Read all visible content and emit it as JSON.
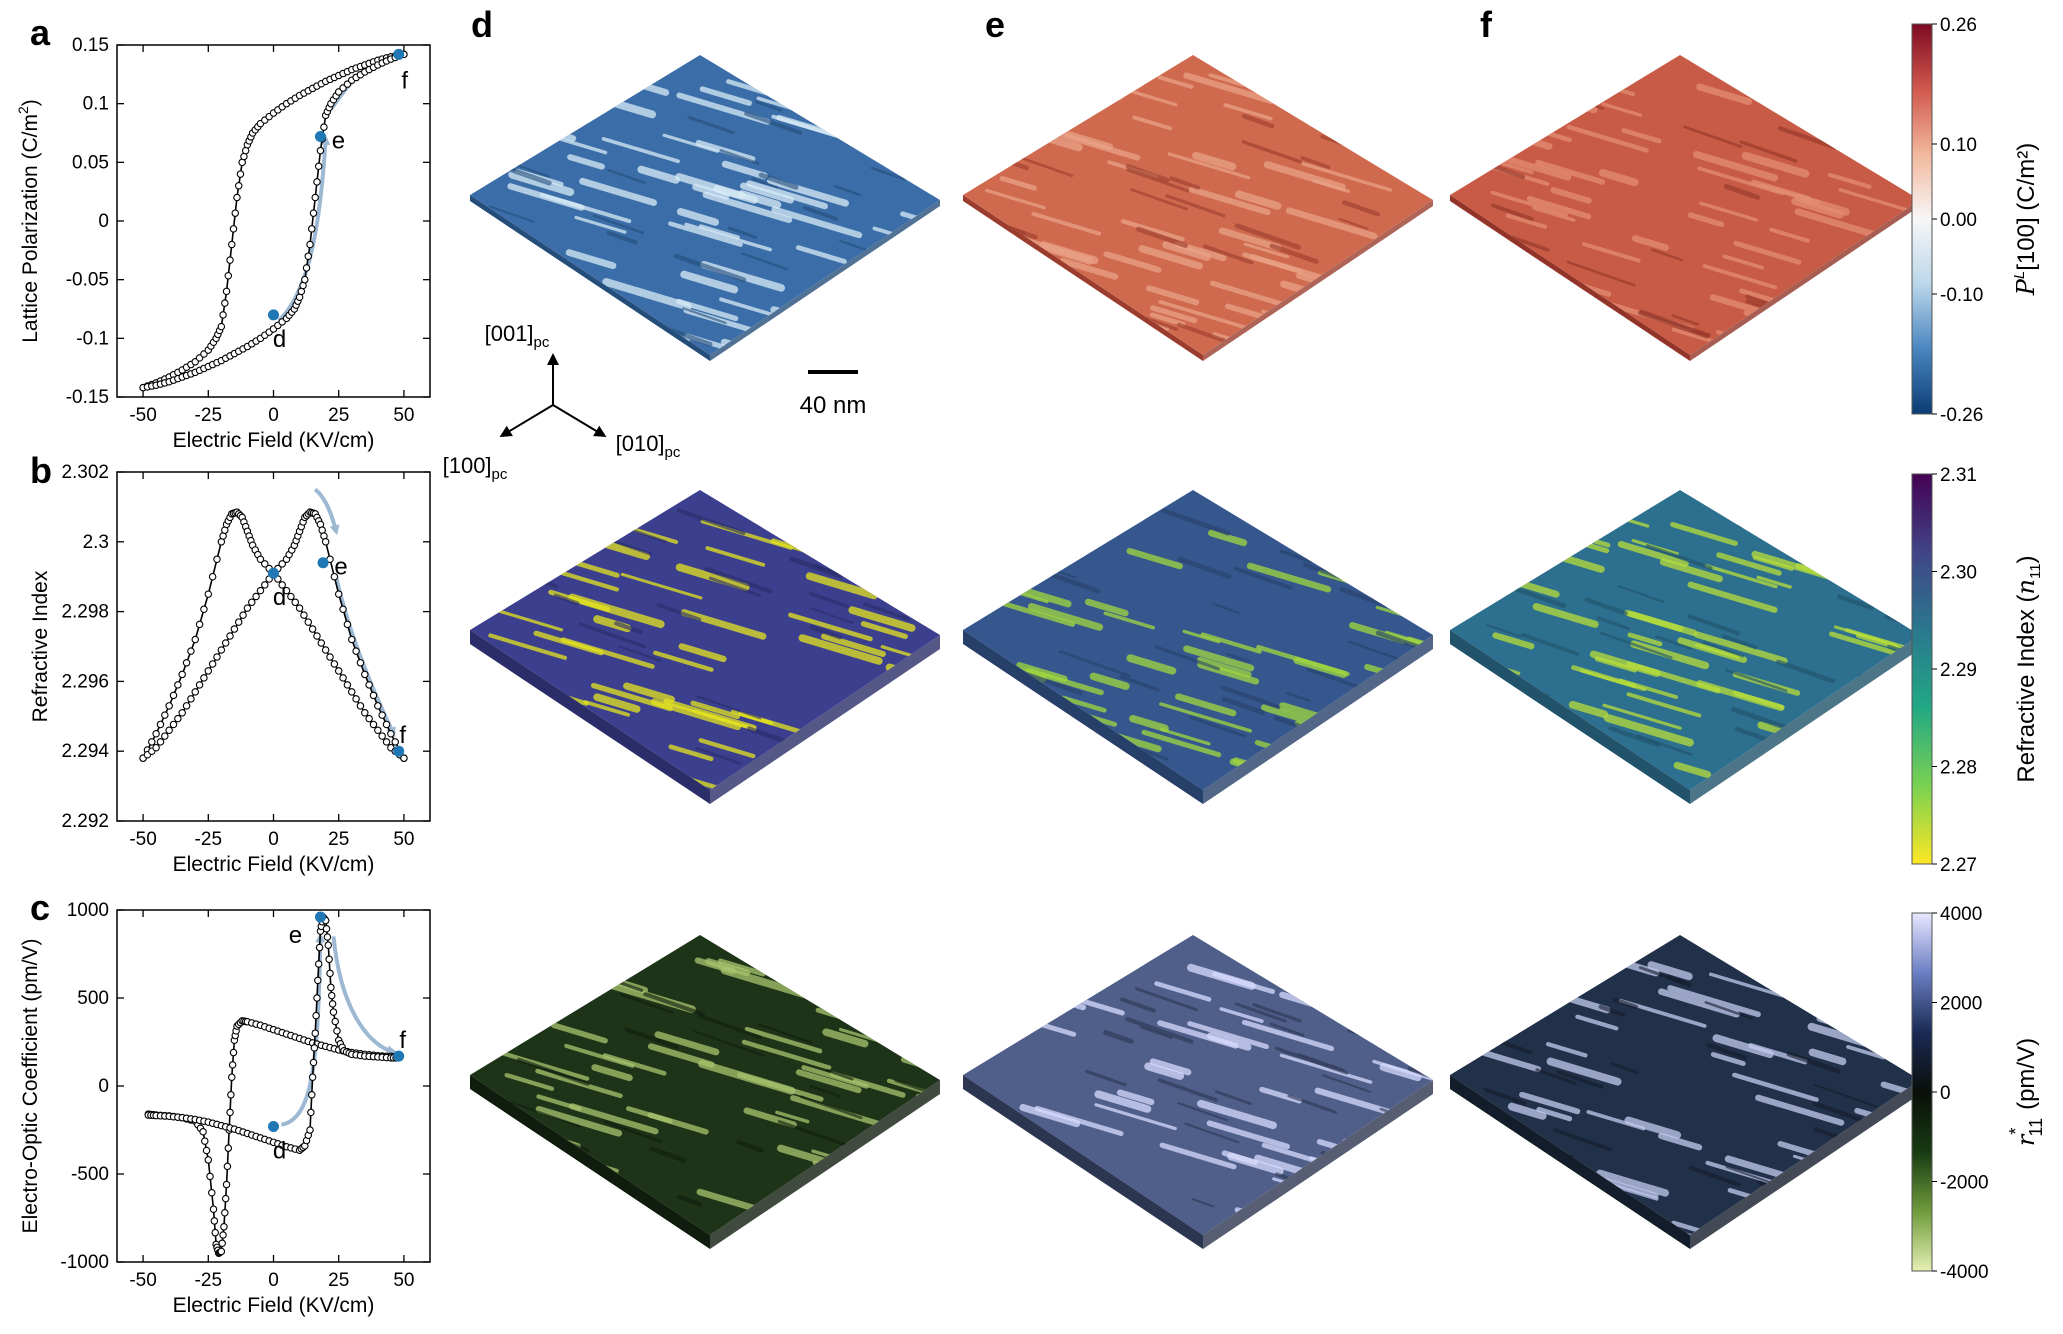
{
  "panel_letters": [
    "a",
    "b",
    "c",
    "d",
    "e",
    "f"
  ],
  "colors": {
    "curve": "#000000",
    "marker": "#1f77b4",
    "arrow": "#9db8d2"
  },
  "chart_data": [
    {
      "id": "a",
      "type": "line",
      "xlabel": "Electric Field (KV/cm)",
      "ylabel": "Lattice Polarization (C/m",
      "ylabel_sup": "2",
      "ylabel_end": ")",
      "xlim": [
        -60,
        60
      ],
      "ylim": [
        -0.15,
        0.15
      ],
      "xticks": [
        -50,
        -25,
        0,
        25,
        50
      ],
      "xtick_labels": [
        "-50",
        "-25",
        "0",
        "25",
        "50"
      ],
      "yticks": [
        -0.15,
        -0.1,
        -0.05,
        0,
        0.05,
        0.1,
        0.15
      ],
      "ytick_labels": [
        "-0.15",
        "-0.1",
        "-0.05",
        "0",
        "0.05",
        "0.1",
        "0.15"
      ],
      "series": [
        {
          "x": [
            -50,
            -45,
            -40,
            -35,
            -30,
            -25,
            -22,
            -20,
            -18,
            -16,
            -14,
            -12,
            -10,
            -8,
            -5,
            0,
            5,
            10,
            15,
            20,
            25,
            30,
            35,
            40,
            45,
            50
          ],
          "y": [
            -0.142,
            -0.138,
            -0.133,
            -0.127,
            -0.12,
            -0.11,
            -0.1,
            -0.09,
            -0.06,
            -0.02,
            0.02,
            0.05,
            0.065,
            0.075,
            0.083,
            0.092,
            0.1,
            0.107,
            0.113,
            0.119,
            0.124,
            0.129,
            0.133,
            0.137,
            0.14,
            0.142
          ]
        },
        {
          "x": [
            -50,
            -45,
            -40,
            -35,
            -30,
            -25,
            -20,
            -15,
            -10,
            -5,
            0,
            5,
            8,
            10,
            12,
            14,
            16,
            18,
            20,
            22,
            25,
            30,
            35,
            40,
            45,
            50
          ],
          "y": [
            -0.142,
            -0.14,
            -0.137,
            -0.133,
            -0.129,
            -0.124,
            -0.119,
            -0.113,
            -0.107,
            -0.1,
            -0.092,
            -0.083,
            -0.075,
            -0.065,
            -0.05,
            -0.02,
            0.02,
            0.06,
            0.09,
            0.1,
            0.11,
            0.12,
            0.127,
            0.133,
            0.138,
            0.142
          ]
        }
      ],
      "markers": [
        {
          "label": "d",
          "x": 0,
          "y": -0.08
        },
        {
          "label": "e",
          "x": 18,
          "y": 0.072
        },
        {
          "label": "f",
          "x": 48,
          "y": 0.142
        }
      ]
    },
    {
      "id": "b",
      "type": "line",
      "xlabel": "Electric Field (KV/cm)",
      "ylabel": "Refractive Index",
      "xlim": [
        -60,
        60
      ],
      "ylim": [
        2.292,
        2.302
      ],
      "xticks": [
        -50,
        -25,
        0,
        25,
        50
      ],
      "xtick_labels": [
        "-50",
        "-25",
        "0",
        "25",
        "50"
      ],
      "yticks": [
        2.292,
        2.294,
        2.296,
        2.298,
        2.3,
        2.302
      ],
      "ytick_labels": [
        "2.292",
        "2.294",
        "2.296",
        "2.298",
        "2.3",
        "2.302"
      ],
      "series": [
        {
          "x": [
            -50,
            -45,
            -40,
            -35,
            -30,
            -25,
            -20,
            -18,
            -16,
            -14,
            -12,
            -10,
            -8,
            -5,
            0,
            5,
            10,
            15,
            20,
            25,
            30,
            35,
            40,
            45,
            50
          ],
          "y": [
            2.2938,
            2.2945,
            2.2953,
            2.2962,
            2.2972,
            2.2985,
            2.3,
            2.3005,
            2.3008,
            2.30085,
            2.3007,
            2.3003,
            2.2999,
            2.2995,
            2.2991,
            2.2986,
            2.2981,
            2.2975,
            2.2969,
            2.2963,
            2.2957,
            2.2951,
            2.2946,
            2.2941,
            2.2938
          ]
        },
        {
          "x": [
            -50,
            -45,
            -40,
            -35,
            -30,
            -25,
            -20,
            -15,
            -10,
            -5,
            0,
            5,
            8,
            10,
            12,
            14,
            16,
            18,
            20,
            25,
            30,
            35,
            40,
            45,
            50
          ],
          "y": [
            2.2938,
            2.2941,
            2.2946,
            2.2951,
            2.2957,
            2.2963,
            2.2969,
            2.2975,
            2.2981,
            2.2986,
            2.2991,
            2.2995,
            2.2999,
            2.3003,
            2.3007,
            2.30085,
            2.3008,
            2.3005,
            2.3,
            2.2985,
            2.2972,
            2.2962,
            2.2953,
            2.2945,
            2.2938
          ]
        }
      ],
      "markers": [
        {
          "label": "d",
          "x": 0,
          "y": 2.2991
        },
        {
          "label": "e",
          "x": 19,
          "y": 2.2994
        },
        {
          "label": "f",
          "x": 48,
          "y": 2.294
        }
      ]
    },
    {
      "id": "c",
      "type": "line",
      "xlabel": "Electric Field (KV/cm)",
      "ylabel": "Electro-Optic Coefficient (pm/V)",
      "xlim": [
        -60,
        60
      ],
      "ylim": [
        -1000,
        1000
      ],
      "xticks": [
        -50,
        -25,
        0,
        25,
        50
      ],
      "xtick_labels": [
        "-50",
        "-25",
        "0",
        "25",
        "50"
      ],
      "yticks": [
        -1000,
        -500,
        0,
        500,
        1000
      ],
      "ytick_labels": [
        "-1000",
        "-500",
        "0",
        "500",
        "1000"
      ],
      "series": [
        {
          "x": [
            -48,
            -45,
            -40,
            -35,
            -30,
            -27,
            -25,
            -23,
            -22,
            -21,
            -20,
            -19,
            -18,
            -17,
            -16,
            -15,
            -14,
            -12,
            -10,
            -5,
            0,
            5,
            10,
            15,
            20,
            25,
            30,
            35,
            40,
            45,
            48
          ],
          "y": [
            -160,
            -165,
            -170,
            -180,
            -200,
            -260,
            -420,
            -700,
            -900,
            -950,
            -940,
            -800,
            -560,
            -250,
            50,
            260,
            340,
            370,
            365,
            345,
            320,
            295,
            270,
            245,
            225,
            205,
            190,
            180,
            172,
            168,
            165
          ]
        },
        {
          "x": [
            -48,
            -45,
            -40,
            -35,
            -30,
            -25,
            -20,
            -15,
            -10,
            -5,
            0,
            5,
            10,
            12,
            14,
            15,
            16,
            17,
            18,
            19,
            20,
            21,
            22,
            23,
            25,
            27,
            30,
            35,
            40,
            45,
            48
          ],
          "y": [
            -165,
            -168,
            -172,
            -180,
            -190,
            -205,
            -225,
            -245,
            -270,
            -295,
            -320,
            -345,
            -365,
            -340,
            -250,
            50,
            300,
            600,
            880,
            960,
            940,
            800,
            560,
            420,
            260,
            200,
            180,
            170,
            165,
            160,
            160
          ]
        }
      ],
      "markers": [
        {
          "label": "d",
          "x": 0,
          "y": -230
        },
        {
          "label": "e",
          "x": 18,
          "y": 960
        },
        {
          "label": "f",
          "x": 48,
          "y": 170
        }
      ]
    }
  ],
  "axes_triad": {
    "up": "[001]",
    "left": "[100]",
    "right": "[010]",
    "subscript": "pc"
  },
  "scale_bar": {
    "label": "40 nm"
  },
  "colorbars": [
    {
      "id": "polarization",
      "label_main": "P",
      "label_sup": "L",
      "label_rest": "[100] (C/m²)",
      "ticks": [
        "0.26",
        "0.10",
        "0.00",
        "-0.10",
        "-0.26"
      ],
      "tick_values": [
        0.26,
        0.1,
        0.0,
        -0.1,
        -0.26
      ],
      "range": [
        -0.26,
        0.26
      ],
      "stops": [
        "#0b3c73",
        "#4a86c0",
        "#bcd7ea",
        "#f7f7f7",
        "#f2b79c",
        "#d0584d",
        "#7e0a22"
      ]
    },
    {
      "id": "refractive",
      "label_main": "Refractive Index (",
      "label_var": "n",
      "label_sub": "11",
      "label_end": ")",
      "ticks": [
        "2.31",
        "2.30",
        "2.29",
        "2.28",
        "2.27"
      ],
      "tick_values": [
        2.31,
        2.3,
        2.29,
        2.28,
        2.27
      ],
      "range": [
        2.27,
        2.31
      ],
      "stops": [
        "#fde725",
        "#7ad151",
        "#22a884",
        "#2a788e",
        "#414487",
        "#440154"
      ]
    },
    {
      "id": "eo",
      "label_var": "r",
      "label_sup": "*",
      "label_sub": "11",
      "label_rest": "(pm/V)",
      "ticks": [
        "4000",
        "2000",
        "0",
        "-2000",
        "-4000"
      ],
      "tick_values": [
        4000,
        2000,
        0,
        -2000,
        -4000
      ],
      "range": [
        -4000,
        4000
      ],
      "stops": [
        "#e6f0b4",
        "#6f9b3c",
        "#173a12",
        "#0a0f0a",
        "#1a2a55",
        "#6b7fc4",
        "#e8e8ff"
      ]
    }
  ],
  "slabs": {
    "rows": [
      {
        "id": "polarization",
        "colors": [
          "#3b6ea8",
          "#cf6a4f",
          "#c75b45"
        ],
        "stripe": [
          "#d9ecf7",
          "#e9a286",
          "#e38e73"
        ],
        "side": [
          "#254d7a",
          "#9b3d2e",
          "#923528"
        ]
      },
      {
        "id": "refractive",
        "colors": [
          "#3b3f8e",
          "#35578e",
          "#2d6f8e"
        ],
        "stripe": [
          "#e6e51f",
          "#a2d83e",
          "#b8de3a"
        ],
        "side": [
          "#2a2d68",
          "#27406a",
          "#21536a"
        ]
      },
      {
        "id": "eo",
        "colors": [
          "#1d3418",
          "#4f5f8a",
          "#22314a"
        ],
        "stripe": [
          "#a9c46e",
          "#d9dcff",
          "#c3cbef"
        ],
        "side": [
          "#101d0e",
          "#2d3650",
          "#141d2c"
        ]
      }
    ]
  }
}
